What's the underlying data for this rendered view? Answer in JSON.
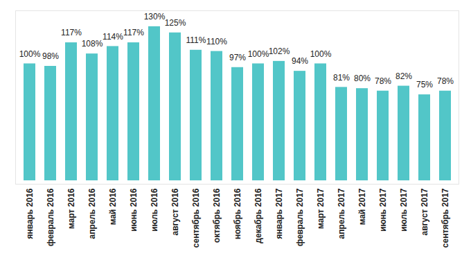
{
  "chart_data": {
    "type": "bar",
    "categories": [
      "январь 2016",
      "февраль 2016",
      "март 2016",
      "апрель 2016",
      "май 2016",
      "июнь 2016",
      "июль 2016",
      "август 2016",
      "сентябрь 2016",
      "октябрь 2016",
      "ноябрь 2016",
      "декабрь 2016",
      "январь 2017",
      "февраль 2017",
      "март 2017",
      "апрель 2017",
      "май 2017",
      "июнь 2017",
      "июль 2017",
      "август 2017",
      "сентябрь 2017"
    ],
    "values": [
      100,
      98,
      117,
      108,
      114,
      117,
      130,
      125,
      111,
      110,
      97,
      100,
      102,
      94,
      100,
      81,
      80,
      78,
      82,
      75,
      78
    ],
    "value_labels": [
      "100%",
      "98%",
      "117%",
      "108%",
      "114%",
      "117%",
      "130%",
      "125%",
      "111%",
      "110%",
      "97%",
      "100%",
      "102%",
      "94%",
      "100%",
      "81%",
      "80%",
      "78%",
      "82%",
      "75%",
      "78%"
    ],
    "color": "#52c6c8",
    "ylim": [
      0,
      140
    ],
    "grid": false,
    "data_labels": true,
    "tick_labels": "x"
  }
}
